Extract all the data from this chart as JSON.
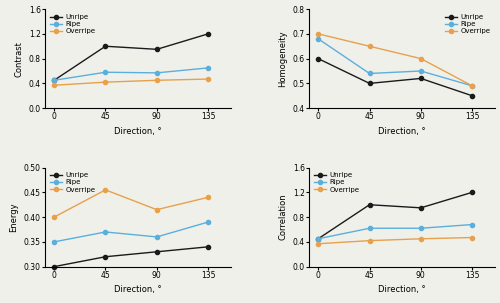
{
  "directions": [
    0,
    45,
    90,
    135
  ],
  "contrast": {
    "Unripe": [
      0.45,
      1.0,
      0.95,
      1.2
    ],
    "Ripe": [
      0.45,
      0.58,
      0.57,
      0.65
    ],
    "Overripe": [
      0.37,
      0.42,
      0.45,
      0.47
    ]
  },
  "homogeneity": {
    "Unripe": [
      0.6,
      0.5,
      0.52,
      0.45
    ],
    "Ripe": [
      0.68,
      0.54,
      0.55,
      0.49
    ],
    "Overripe": [
      0.7,
      0.65,
      0.6,
      0.49
    ]
  },
  "energy": {
    "Unripe": [
      0.3,
      0.32,
      0.33,
      0.34
    ],
    "Ripe": [
      0.35,
      0.37,
      0.36,
      0.39
    ],
    "Overripe": [
      0.4,
      0.455,
      0.415,
      0.44
    ]
  },
  "correlation": {
    "Unripe": [
      0.45,
      1.0,
      0.95,
      1.2
    ],
    "Ripe": [
      0.45,
      0.62,
      0.62,
      0.68
    ],
    "Overripe": [
      0.37,
      0.42,
      0.45,
      0.47
    ]
  },
  "colors": {
    "Unripe": "#1a1a1a",
    "Ripe": "#5aafdd",
    "Overripe": "#e8a04a"
  },
  "ylims": {
    "contrast": [
      0.0,
      1.6
    ],
    "homogeneity": [
      0.4,
      0.8
    ],
    "energy": [
      0.3,
      0.5
    ],
    "correlation": [
      0.0,
      1.6
    ]
  },
  "yticks": {
    "contrast": [
      0.0,
      0.4,
      0.8,
      1.2,
      1.6
    ],
    "homogeneity": [
      0.4,
      0.5,
      0.6,
      0.7,
      0.8
    ],
    "energy": [
      0.3,
      0.35,
      0.4,
      0.45,
      0.5
    ],
    "correlation": [
      0.0,
      0.4,
      0.8,
      1.2,
      1.6
    ]
  },
  "xlim": [
    -8,
    155
  ],
  "xticks": [
    0,
    45,
    90,
    135
  ],
  "xlabel": "Direction, °",
  "marker": "o",
  "markersize": 3,
  "linewidth": 1.0,
  "legend_order": [
    "Unripe",
    "Ripe",
    "Overripe"
  ],
  "background_color": "#f0f0eb",
  "legend_positions": {
    "contrast": "upper left",
    "homogeneity": "upper right",
    "energy": "upper left",
    "correlation": "upper left"
  }
}
